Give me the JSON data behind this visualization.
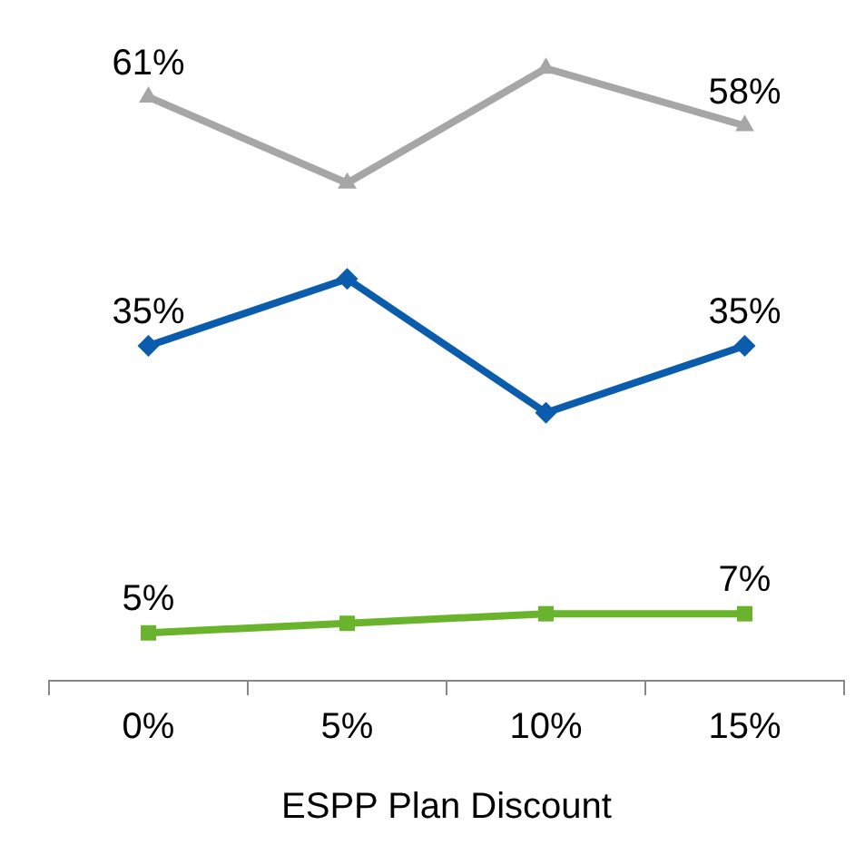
{
  "chart_data": {
    "type": "line",
    "xlabel": "ESPP Plan Discount",
    "categories": [
      "0%",
      "5%",
      "10%",
      "15%"
    ],
    "tick_labels": "x",
    "grid": false,
    "legend": false,
    "line_style": "solid",
    "series": [
      {
        "color": "#a6a6a6",
        "marker": "triangle",
        "values": [
          61,
          52,
          64,
          58
        ],
        "value_labels": [
          "61%",
          null,
          null,
          "58%"
        ]
      },
      {
        "color": "#0b5cad",
        "marker": "diamond",
        "values": [
          35,
          42,
          28,
          35
        ],
        "value_labels": [
          "35%",
          null,
          null,
          "35%"
        ]
      },
      {
        "color": "#6ab42d",
        "marker": "square",
        "values": [
          5,
          6,
          7,
          7
        ],
        "value_labels": [
          "5%",
          null,
          null,
          "7%"
        ]
      }
    ]
  }
}
